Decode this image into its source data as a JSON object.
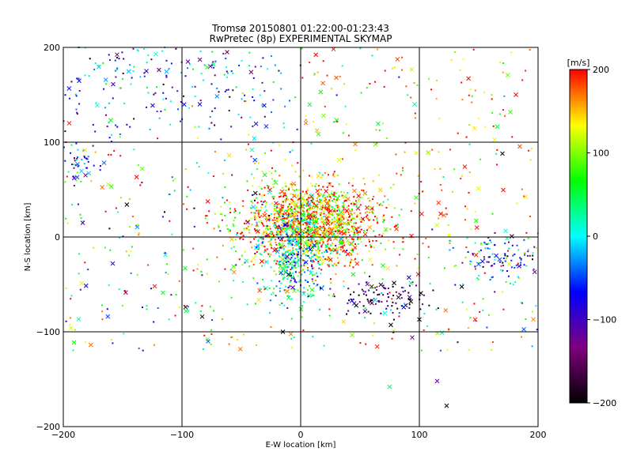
{
  "chart_data": {
    "type": "scatter",
    "title": "Tromsø 20150801 01:22:00-01:23:43",
    "subtitle": "RwPretec (8p) EXPERIMENTAL SKYMAP",
    "xlabel": "E-W location [km]",
    "ylabel": "N-S location [km]",
    "xlim": [
      -200,
      200
    ],
    "ylim": [
      -200,
      200
    ],
    "xticks": [
      "−200",
      "−100",
      "0",
      "100",
      "200"
    ],
    "yticks": [
      "−200",
      "−100",
      "0",
      "100",
      "200"
    ],
    "grid": true,
    "colorbar": {
      "label": "[m/s]",
      "range": [
        -200,
        200
      ],
      "ticks": [
        "200",
        "100",
        "0",
        "−100",
        "−200"
      ],
      "colors": [
        "#000000",
        "#7f007f",
        "#0000ff",
        "#00ffff",
        "#00ff00",
        "#ffff00",
        "#ff0000"
      ]
    },
    "markers": [
      "dot",
      "x"
    ],
    "clusters": [
      {
        "x": [
          -40,
          60
        ],
        "y": [
          -20,
          50
        ],
        "velocity": 150,
        "density": "very-high"
      },
      {
        "x": [
          -30,
          20
        ],
        "y": [
          -60,
          20
        ],
        "velocity": 0,
        "density": "high"
      },
      {
        "x": [
          40,
          100
        ],
        "y": [
          -80,
          -50
        ],
        "velocity": -150,
        "density": "medium"
      },
      {
        "x": [
          140,
          200
        ],
        "y": [
          -40,
          0
        ],
        "velocity": -70,
        "density": "medium"
      },
      {
        "x": [
          -200,
          -170
        ],
        "y": [
          60,
          100
        ],
        "velocity": -70,
        "density": "low"
      },
      {
        "x": [
          -200,
          0
        ],
        "y": [
          120,
          200
        ],
        "velocity": -50,
        "density": "sparse"
      }
    ],
    "points": [
      {
        "x": -130,
        "y": 175,
        "v": -90,
        "m": "x"
      },
      {
        "x": -122,
        "y": 193,
        "v": 10,
        "m": "x"
      },
      {
        "x": -62,
        "y": 195,
        "v": -150,
        "m": "x"
      },
      {
        "x": -85,
        "y": 140,
        "v": -80,
        "m": "x"
      },
      {
        "x": -95,
        "y": 185,
        "v": -120,
        "m": "x"
      },
      {
        "x": 30,
        "y": 168,
        "v": 180,
        "m": "x"
      },
      {
        "x": 96,
        "y": 140,
        "v": 20,
        "m": "x"
      },
      {
        "x": 170,
        "y": 88,
        "v": -190,
        "m": "x"
      },
      {
        "x": -123,
        "y": -52,
        "v": 190,
        "m": "x"
      },
      {
        "x": -97,
        "y": -74,
        "v": -190,
        "m": "x"
      },
      {
        "x": -83,
        "y": -84,
        "v": -190,
        "m": "x"
      },
      {
        "x": -78,
        "y": -110,
        "v": -40,
        "m": "x"
      },
      {
        "x": -15,
        "y": -100,
        "v": -190,
        "m": "x"
      },
      {
        "x": 75,
        "y": -158,
        "v": 40,
        "m": "x"
      },
      {
        "x": 115,
        "y": -152,
        "v": -120,
        "m": "x"
      },
      {
        "x": 123,
        "y": -178,
        "v": -190,
        "m": "x"
      },
      {
        "x": 94,
        "y": -106,
        "v": -120,
        "m": "x"
      },
      {
        "x": 147,
        "y": -87,
        "v": 190,
        "m": "x"
      },
      {
        "x": -195,
        "y": 120,
        "v": 190,
        "m": "x"
      },
      {
        "x": -160,
        "y": 123,
        "v": 60,
        "m": "x"
      },
      {
        "x": 100,
        "y": -87,
        "v": -190,
        "m": "x"
      }
    ]
  }
}
